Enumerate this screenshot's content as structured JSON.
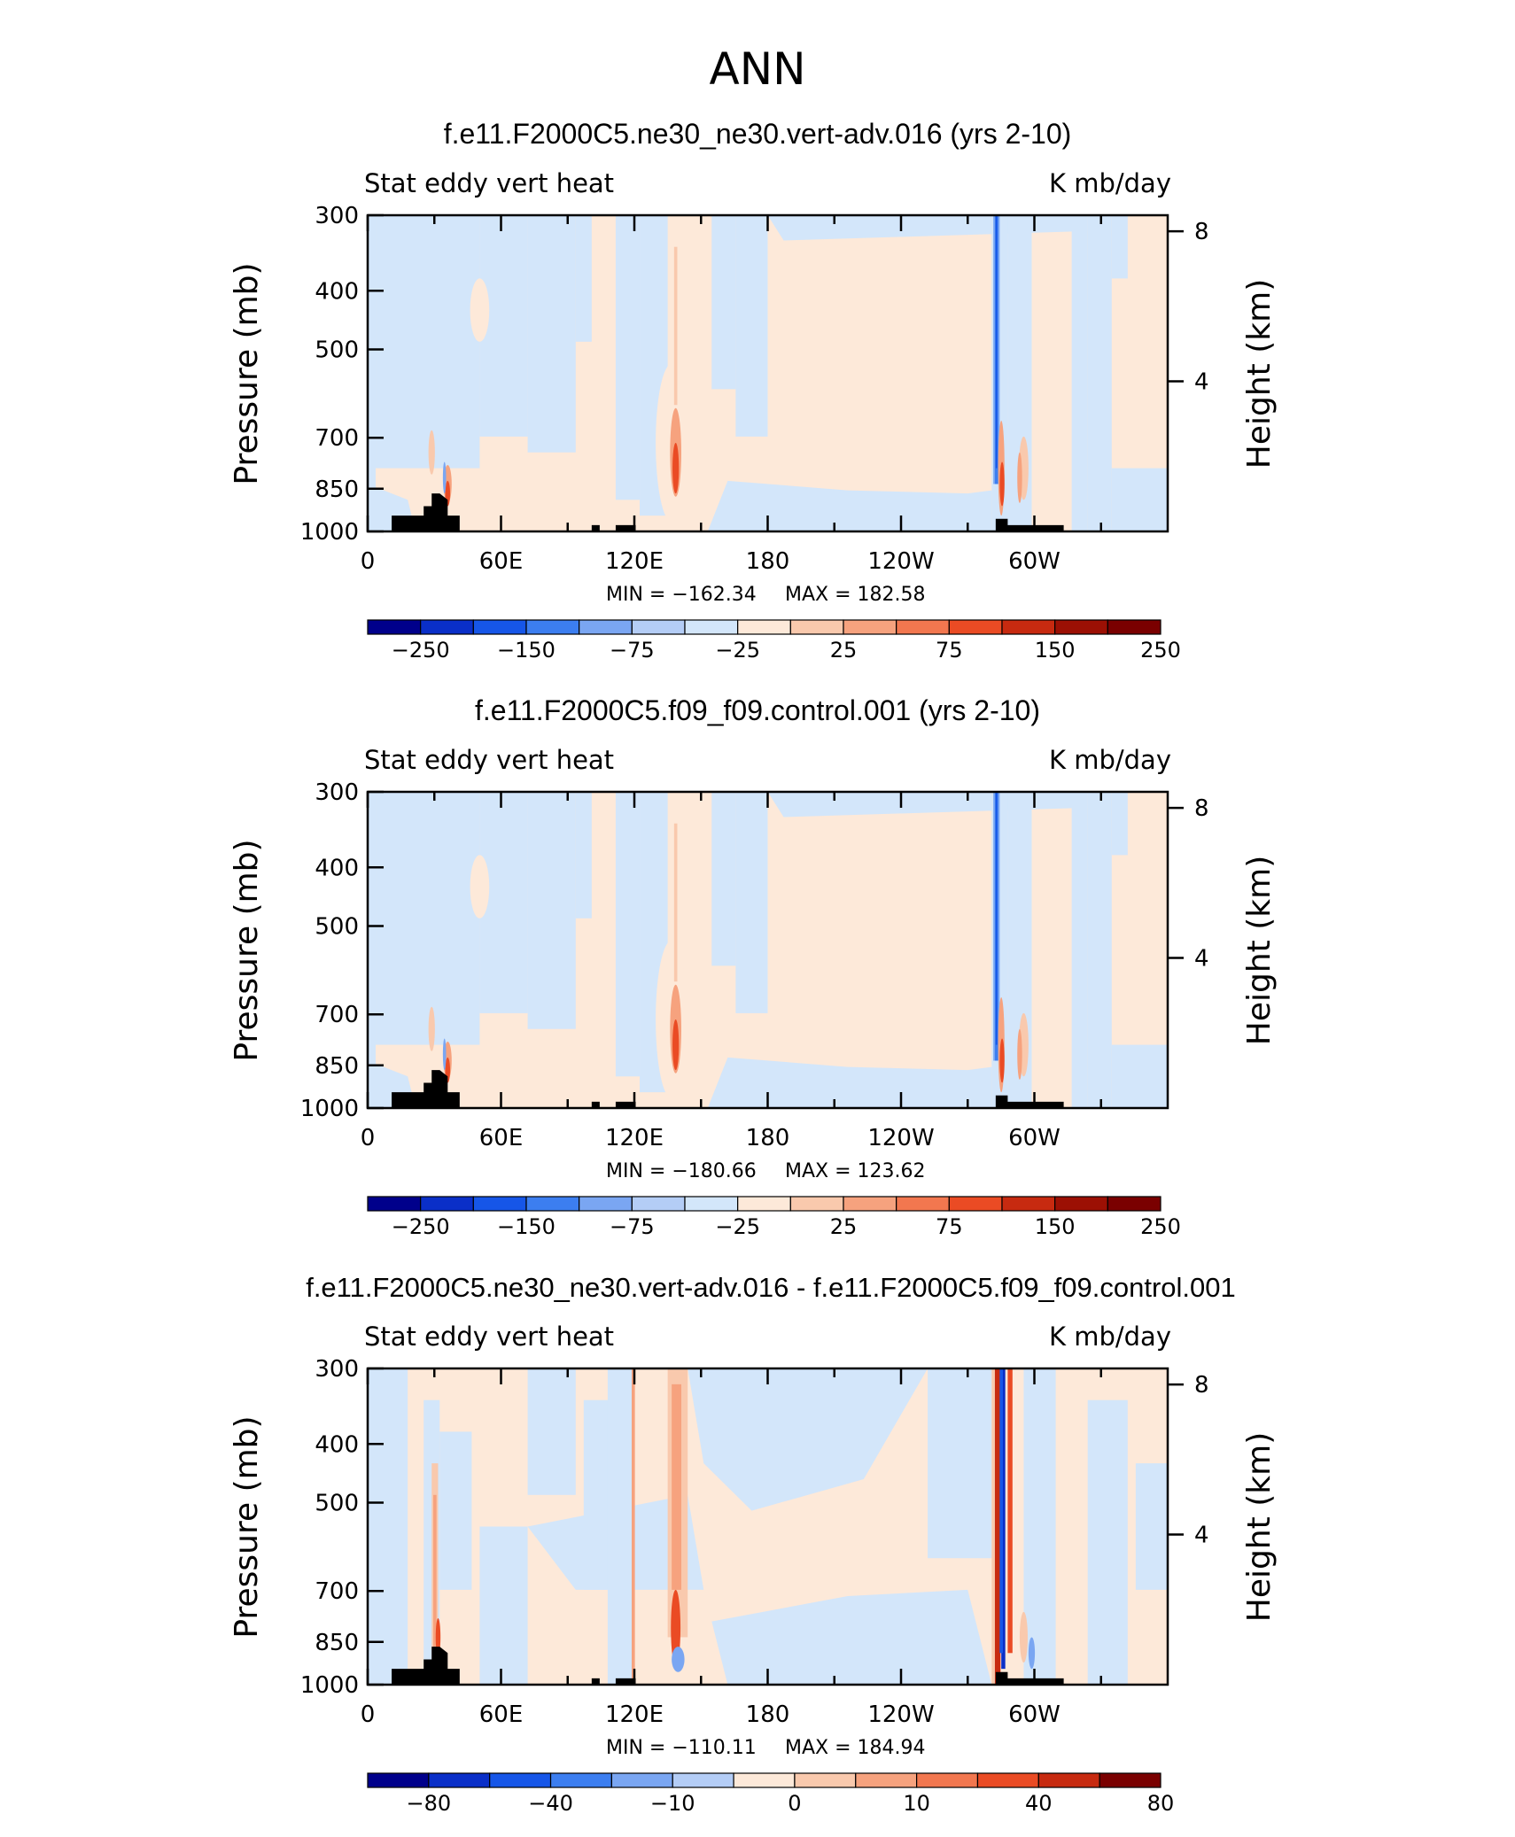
{
  "figure": {
    "title": "ANN"
  },
  "chart_data": [
    {
      "type": "heatmap",
      "title": "f.e11.F2000C5.ne30_ne30.vert-adv.016 (yrs 2-10)",
      "left_label": "Stat eddy vert heat",
      "right_label": "K mb/day",
      "ylabel": "Pressure (mb)",
      "ylabel_right": "Height (km)",
      "xticks": [
        "0",
        "60E",
        "120E",
        "180",
        "120W",
        "60W"
      ],
      "yticks": [
        "300",
        "400",
        "500",
        "700",
        "850",
        "1000"
      ],
      "yticks_right": [
        "8",
        "4"
      ],
      "min_label": "MIN = −162.34",
      "max_label": "MAX = 182.58",
      "colorbar": {
        "labels": [
          "−250",
          "−150",
          "−75",
          "−25",
          "25",
          "75",
          "150",
          "250"
        ],
        "colors": [
          "#00008b",
          "#0a2fc8",
          "#1656e8",
          "#3c7ef0",
          "#7aa6f2",
          "#b4cdf6",
          "#d3e6fa",
          "#fde9d9",
          "#f9c9ad",
          "#f6a27e",
          "#f2774f",
          "#ea4b24",
          "#c72a10",
          "#9c1004",
          "#7a0000"
        ]
      }
    },
    {
      "type": "heatmap",
      "title": "f.e11.F2000C5.f09_f09.control.001 (yrs 2-10)",
      "left_label": "Stat eddy vert heat",
      "right_label": "K mb/day",
      "ylabel": "Pressure (mb)",
      "ylabel_right": "Height (km)",
      "xticks": [
        "0",
        "60E",
        "120E",
        "180",
        "120W",
        "60W"
      ],
      "yticks": [
        "300",
        "400",
        "500",
        "700",
        "850",
        "1000"
      ],
      "yticks_right": [
        "8",
        "4"
      ],
      "min_label": "MIN = −180.66",
      "max_label": "MAX = 123.62",
      "colorbar": {
        "labels": [
          "−250",
          "−150",
          "−75",
          "−25",
          "25",
          "75",
          "150",
          "250"
        ],
        "colors": [
          "#00008b",
          "#0a2fc8",
          "#1656e8",
          "#3c7ef0",
          "#7aa6f2",
          "#b4cdf6",
          "#d3e6fa",
          "#fde9d9",
          "#f9c9ad",
          "#f6a27e",
          "#f2774f",
          "#ea4b24",
          "#c72a10",
          "#9c1004",
          "#7a0000"
        ]
      }
    },
    {
      "type": "heatmap",
      "title": "f.e11.F2000C5.ne30_ne30.vert-adv.016 - f.e11.F2000C5.f09_f09.control.001",
      "left_label": "Stat eddy vert heat",
      "right_label": "K mb/day",
      "ylabel": "Pressure (mb)",
      "ylabel_right": "Height (km)",
      "xticks": [
        "0",
        "60E",
        "120E",
        "180",
        "120W",
        "60W"
      ],
      "yticks": [
        "300",
        "400",
        "500",
        "700",
        "850",
        "1000"
      ],
      "yticks_right": [
        "8",
        "4"
      ],
      "min_label": "MIN = −110.11",
      "max_label": "MAX = 184.94",
      "colorbar": {
        "labels": [
          "−80",
          "−40",
          "−10",
          "0",
          "10",
          "40",
          "80"
        ],
        "colors": [
          "#00008b",
          "#0a2fc8",
          "#1656e8",
          "#3c7ef0",
          "#7aa6f2",
          "#b4cdf6",
          "#fde9d9",
          "#f9c9ad",
          "#f6a27e",
          "#f2774f",
          "#ea4b24",
          "#c72a10",
          "#7a0000"
        ]
      }
    }
  ]
}
